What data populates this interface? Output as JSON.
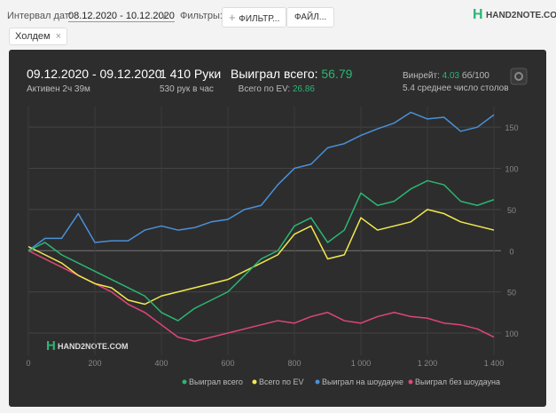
{
  "toolbar": {
    "date_label": "Интервал дат:",
    "date_range": "08.12.2020 - 10.12.2020",
    "filters_label": "Фильтры:",
    "filter_button": "ФИЛЬТР...",
    "file_button": "ФАЙЛ...",
    "logo": "HAND2NOTE.COM",
    "tag": "Холдем"
  },
  "stats": {
    "period": "09.12.2020 - 09.12.2020",
    "active": "Активен 2ч 39м",
    "hands": "1 410 Руки",
    "hands_per_hour": "530 рук в час",
    "won_label": "Выиграл всего:",
    "won_value": "56.79",
    "ev_label": "Всего по EV:",
    "ev_value": "26.86",
    "winrate_label": "Винрейт:",
    "winrate_value": "4.03",
    "winrate_unit": "бб/100",
    "tables": "5.4 среднее число столов"
  },
  "chart_data": {
    "type": "line",
    "watermark": "HAND2NOTE.COM",
    "x": [
      0,
      50,
      100,
      150,
      200,
      250,
      300,
      350,
      400,
      450,
      500,
      550,
      600,
      650,
      700,
      750,
      800,
      850,
      900,
      950,
      1000,
      1050,
      1100,
      1150,
      1200,
      1250,
      1300,
      1350,
      1400
    ],
    "series": [
      {
        "name": "Выиграл всего",
        "color": "#2bb673",
        "values": [
          0,
          10,
          -5,
          -15,
          -25,
          -35,
          -45,
          -55,
          -75,
          -85,
          -70,
          -60,
          -50,
          -30,
          -10,
          0,
          30,
          40,
          10,
          25,
          70,
          55,
          60,
          75,
          85,
          80,
          60,
          55,
          62
        ]
      },
      {
        "name": "Всего по EV",
        "color": "#f2e94e",
        "values": [
          5,
          -5,
          -15,
          -30,
          -40,
          -45,
          -60,
          -65,
          -55,
          -50,
          -45,
          -40,
          -35,
          -25,
          -15,
          -5,
          20,
          30,
          -10,
          -5,
          40,
          25,
          30,
          35,
          50,
          45,
          35,
          30,
          25
        ]
      },
      {
        "name": "Выиграл на шоудауне",
        "color": "#4a90d9",
        "values": [
          0,
          15,
          15,
          45,
          10,
          12,
          12,
          25,
          30,
          25,
          28,
          35,
          38,
          50,
          55,
          80,
          100,
          105,
          125,
          130,
          140,
          148,
          155,
          168,
          160,
          162,
          145,
          150,
          165
        ]
      },
      {
        "name": "Выиграл без шоудауна",
        "color": "#e0457b",
        "values": [
          0,
          -10,
          -20,
          -30,
          -40,
          -50,
          -65,
          -75,
          -90,
          -105,
          -110,
          -105,
          -100,
          -95,
          -90,
          -85,
          -88,
          -80,
          -75,
          -85,
          -88,
          -80,
          -75,
          -80,
          -82,
          -88,
          -90,
          -95,
          -105
        ]
      }
    ],
    "xlim": [
      0,
      1400
    ],
    "xticks": [
      0,
      200,
      400,
      600,
      800,
      {
        "value": 1000,
        "label": "1 000"
      },
      {
        "value": 1200,
        "label": "1 200"
      },
      {
        "value": 1400,
        "label": "1 400"
      }
    ],
    "ylim": [
      -127,
      175
    ],
    "yticks": [
      {
        "value": -100,
        "label": "100"
      },
      {
        "value": -50,
        "label": "50"
      },
      0,
      50,
      100,
      150
    ],
    "grid": true
  }
}
